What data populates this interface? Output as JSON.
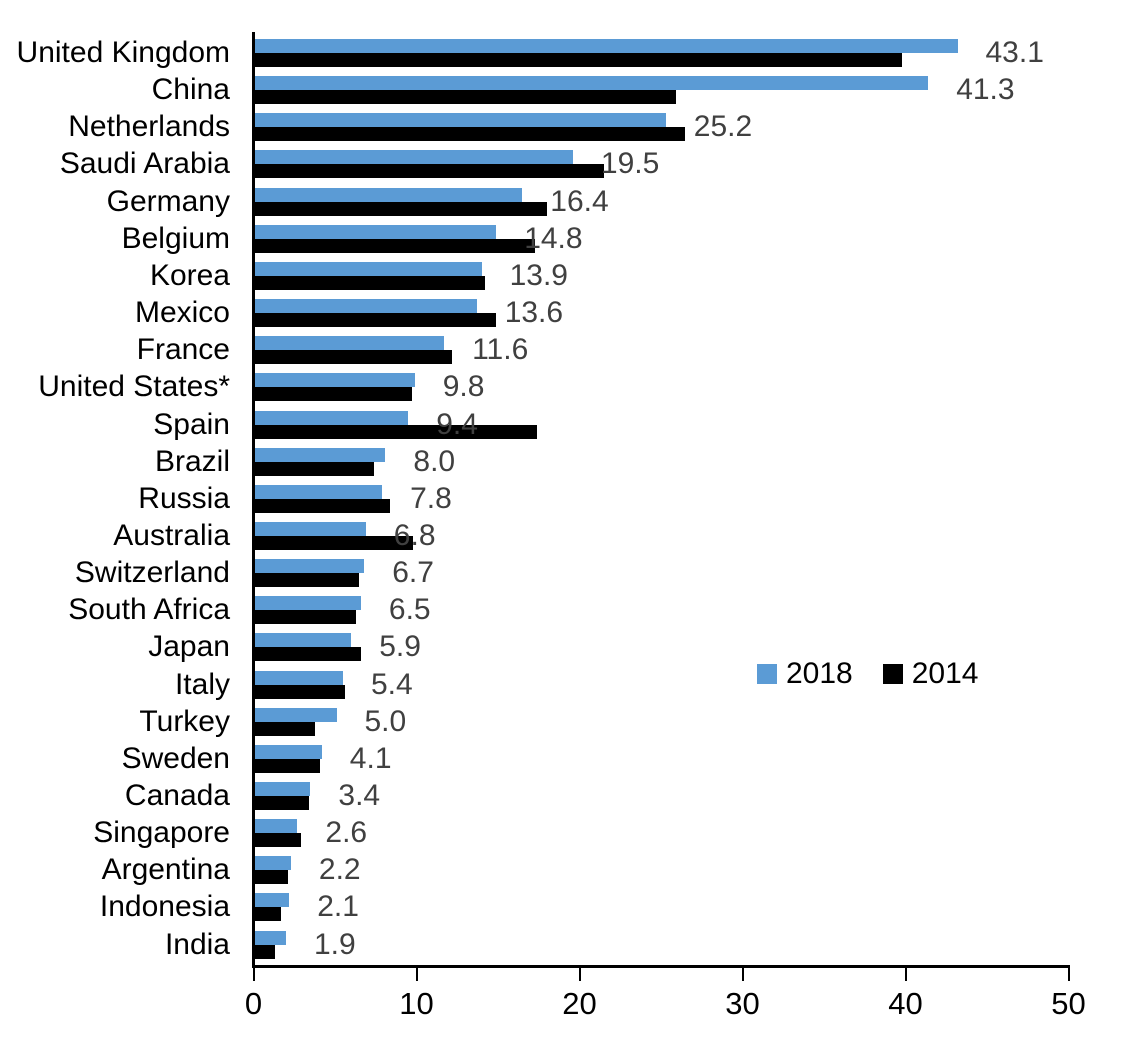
{
  "chart_data": {
    "type": "bar",
    "orientation": "horizontal",
    "title": "",
    "xlabel": "",
    "ylabel": "",
    "grid": false,
    "xlim": [
      0,
      50
    ],
    "x_ticks": [
      0,
      10,
      20,
      30,
      40,
      50
    ],
    "categories": [
      "United Kingdom",
      "China",
      "Netherlands",
      "Saudi Arabia",
      "Germany",
      "Belgium",
      "Korea",
      "Mexico",
      "France",
      "United States*",
      "Spain",
      "Brazil",
      "Russia",
      "Australia",
      "Switzerland",
      "South Africa",
      "Japan",
      "Italy",
      "Turkey",
      "Sweden",
      "Canada",
      "Singapore",
      "Argentina",
      "Indonesia",
      "India"
    ],
    "series": [
      {
        "name": "2018",
        "color": "#5B9BD5",
        "values": [
          43.1,
          41.3,
          25.2,
          19.5,
          16.4,
          14.8,
          13.9,
          13.6,
          11.6,
          9.8,
          9.4,
          8.0,
          7.8,
          6.8,
          6.7,
          6.5,
          5.9,
          5.4,
          5.0,
          4.1,
          3.4,
          2.6,
          2.2,
          2.1,
          1.9
        ],
        "data_labels": [
          "43.1",
          "41.3",
          "25.2",
          "19.5",
          "16.4",
          "14.8",
          "13.9",
          "13.6",
          "11.6",
          "9.8",
          "9.4",
          "8.0",
          "7.8",
          "6.8",
          "6.7",
          "6.5",
          "5.9",
          "5.4",
          "5.0",
          "4.1",
          "3.4",
          "2.6",
          "2.2",
          "2.1",
          "1.9"
        ]
      },
      {
        "name": "2014",
        "color": "#000000",
        "values": [
          39.7,
          25.8,
          26.4,
          21.4,
          17.9,
          17.2,
          14.1,
          14.8,
          12.1,
          9.6,
          17.3,
          7.3,
          8.3,
          9.7,
          6.4,
          6.2,
          6.5,
          5.5,
          3.7,
          4.0,
          3.3,
          2.8,
          2.0,
          1.6,
          1.2
        ]
      }
    ],
    "legend": {
      "position": "center-right",
      "entries": [
        {
          "label": "2018",
          "color": "#5B9BD5"
        },
        {
          "label": "2014",
          "color": "#000000"
        }
      ]
    },
    "value_label_series": "2018",
    "value_label_color": "#404040"
  }
}
